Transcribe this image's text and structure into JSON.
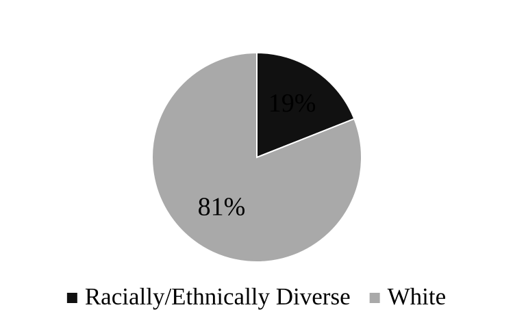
{
  "chart_data": {
    "type": "pie",
    "categories": [
      "Racially/Ethnically Diverse",
      "White"
    ],
    "values": [
      19,
      81
    ],
    "value_labels": [
      "19%",
      "81%"
    ],
    "colors": [
      "#111111",
      "#a9a9a9"
    ],
    "legend": "bottom"
  }
}
